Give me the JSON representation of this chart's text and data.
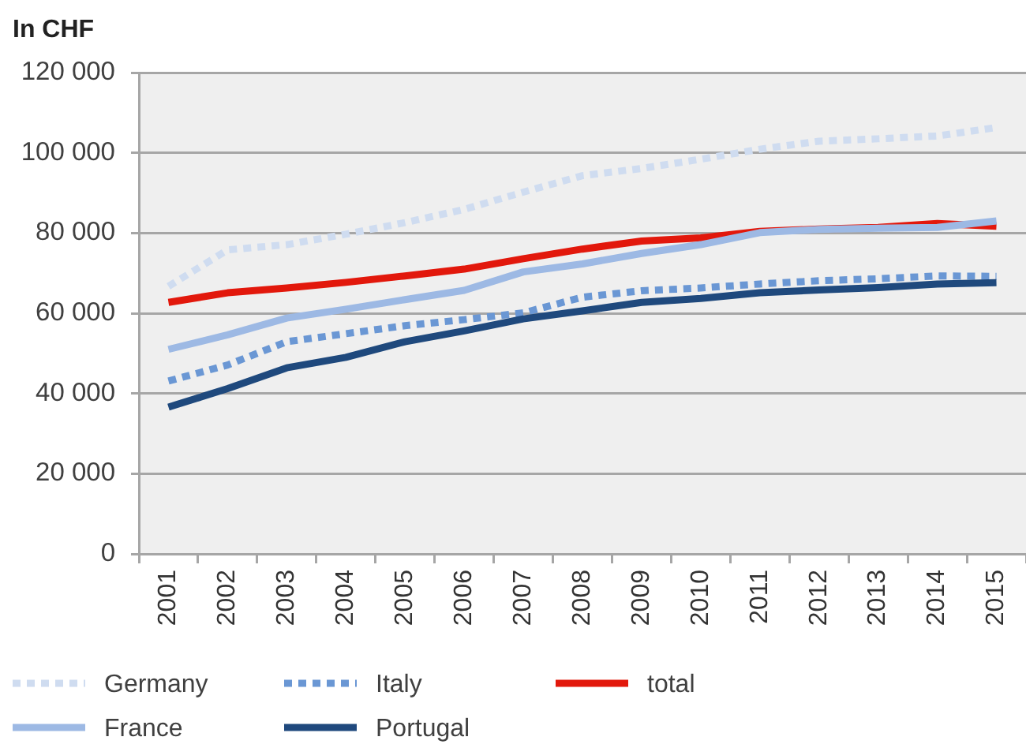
{
  "chart_data": {
    "type": "line",
    "ylabel": "In CHF",
    "categories": [
      "2001",
      "2002",
      "2003",
      "2004",
      "2005",
      "2006",
      "2007",
      "2008",
      "2009",
      "2010",
      "2011",
      "2012",
      "2013",
      "2014",
      "2015"
    ],
    "series": [
      {
        "name": "Germany",
        "color": "#cfdcf0",
        "line_style": "dotted",
        "values": [
          66700,
          75800,
          77100,
          79700,
          82600,
          85900,
          90200,
          94300,
          96100,
          98400,
          100900,
          102900,
          103500,
          104200,
          106300
        ]
      },
      {
        "name": "Italy",
        "color": "#6a97d4",
        "line_style": "dotted",
        "values": [
          43100,
          47100,
          52900,
          54900,
          56900,
          58400,
          60100,
          64000,
          65600,
          66300,
          67300,
          68100,
          68600,
          69300,
          69200
        ]
      },
      {
        "name": "total",
        "color": "#e2180c",
        "line_style": "solid",
        "values": [
          62700,
          65100,
          66300,
          67700,
          69300,
          71000,
          73600,
          76000,
          78000,
          78800,
          80400,
          81000,
          81400,
          82400,
          81700
        ]
      },
      {
        "name": "France",
        "color": "#9db9e4",
        "line_style": "solid",
        "values": [
          51000,
          54600,
          58800,
          61000,
          63400,
          65700,
          70300,
          72300,
          74900,
          77100,
          80100,
          80900,
          81200,
          81400,
          83000
        ]
      },
      {
        "name": "Portugal",
        "color": "#1f497d",
        "line_style": "solid",
        "values": [
          36600,
          41200,
          46400,
          49000,
          52900,
          55600,
          58600,
          60600,
          62700,
          63700,
          65100,
          65800,
          66400,
          67300,
          67600
        ]
      }
    ],
    "ylim": [
      0,
      120000
    ],
    "yticks": [
      0,
      {
        "value": 20000,
        "label": "20 000"
      },
      {
        "value": 40000,
        "label": "40 000"
      },
      {
        "value": 60000,
        "label": "60 000"
      },
      {
        "value": 80000,
        "label": "80 000"
      },
      {
        "value": 100000,
        "label": "100 000"
      },
      {
        "value": 120000,
        "label": "120 000"
      }
    ],
    "grid": "y",
    "legend": "bottom"
  }
}
